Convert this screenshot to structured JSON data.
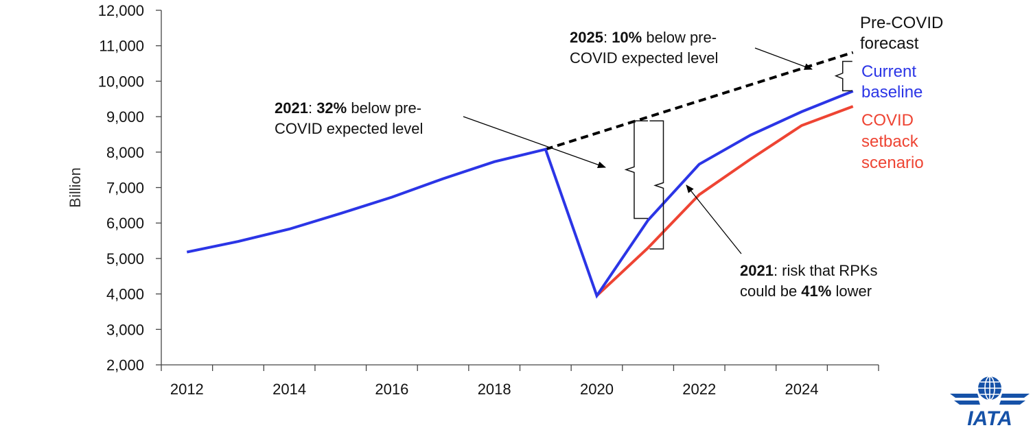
{
  "chart_data": {
    "type": "line",
    "ylabel": "Billion",
    "xlabel": "",
    "title": "",
    "ylim": [
      2000,
      12000
    ],
    "xlim": [
      2011.5,
      2025.5
    ],
    "y_ticks": [
      "2,000",
      "3,000",
      "4,000",
      "5,000",
      "6,000",
      "7,000",
      "8,000",
      "9,000",
      "10,000",
      "11,000",
      "12,000"
    ],
    "y_tick_values": [
      2000,
      3000,
      4000,
      5000,
      6000,
      7000,
      8000,
      9000,
      10000,
      11000,
      12000
    ],
    "x_ticks": [
      "2012",
      "2014",
      "2016",
      "2018",
      "2020",
      "2022",
      "2024"
    ],
    "x_tick_values": [
      2012,
      2014,
      2016,
      2018,
      2020,
      2022,
      2024
    ],
    "grid": false,
    "series": [
      {
        "name": "Current baseline",
        "color": "#2b35e6",
        "style": "solid",
        "x": [
          2012,
          2013,
          2014,
          2015,
          2016,
          2017,
          2018,
          2019,
          2020,
          2021,
          2022,
          2023,
          2024,
          2025
        ],
        "y": [
          5180,
          5480,
          5830,
          6270,
          6730,
          7250,
          7730,
          8080,
          3950,
          6080,
          7660,
          8480,
          9140,
          9720
        ]
      },
      {
        "name": "COVID setback scenario",
        "color": "#ee4433",
        "style": "solid",
        "x": [
          2020,
          2021,
          2022,
          2023,
          2024,
          2025
        ],
        "y": [
          3950,
          5300,
          6800,
          7800,
          8750,
          9290
        ]
      },
      {
        "name": "Pre-COVID forecast",
        "color": "#000000",
        "style": "dashed",
        "x": [
          2019,
          2025
        ],
        "y": [
          8080,
          10810
        ]
      }
    ],
    "legend": [
      {
        "lines": [
          "Pre-COVID",
          "forecast"
        ],
        "color": "#111111"
      },
      {
        "lines": [
          "Current",
          "baseline"
        ],
        "color": "#2b35e6"
      },
      {
        "lines": [
          "COVID",
          "setback",
          "scenario"
        ],
        "color": "#ee4433"
      }
    ],
    "annotations": [
      {
        "id": "ann2025",
        "line1": [
          {
            "t": "2025",
            "b": true
          },
          {
            "t": ": ",
            "b": false
          },
          {
            "t": "10%",
            "b": true
          },
          {
            "t": " below pre-",
            "b": false
          }
        ],
        "line2": [
          {
            "t": "COVID expected level",
            "b": false
          }
        ]
      },
      {
        "id": "ann2021a",
        "line1": [
          {
            "t": "2021",
            "b": true
          },
          {
            "t": ": ",
            "b": false
          },
          {
            "t": "32%",
            "b": true
          },
          {
            "t": " below pre-",
            "b": false
          }
        ],
        "line2": [
          {
            "t": "COVID expected level",
            "b": false
          }
        ]
      },
      {
        "id": "ann2021b",
        "line1": [
          {
            "t": "2021",
            "b": true
          },
          {
            "t": ": risk that RPKs",
            "b": false
          }
        ],
        "line2": [
          {
            "t": "could be ",
            "b": false
          },
          {
            "t": "41%",
            "b": true
          },
          {
            "t": " lower",
            "b": false
          }
        ]
      }
    ]
  },
  "logo": {
    "text": "IATA",
    "color": "#1652a8"
  }
}
